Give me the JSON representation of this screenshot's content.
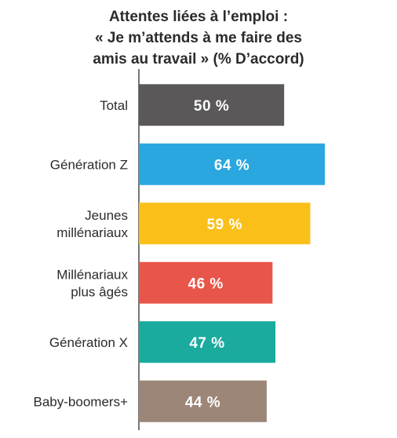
{
  "chart_data": {
    "type": "bar",
    "orientation": "horizontal",
    "title_lines": [
      "Attentes liées à l’emploi :",
      "« Je m’attends à me faire des",
      "amis au travail » (% D’accord)"
    ],
    "categories": [
      [
        "Total"
      ],
      [
        "Génération Z"
      ],
      [
        "Jeunes",
        "millénariaux"
      ],
      [
        "Millénariaux",
        "plus âgés"
      ],
      [
        "Génération X"
      ],
      [
        "Baby-boomers+"
      ]
    ],
    "values": [
      50,
      64,
      59,
      46,
      47,
      44
    ],
    "value_labels": [
      "50 %",
      "64 %",
      "59 %",
      "46 %",
      "47 %",
      "44 %"
    ],
    "colors": [
      "#5b5859",
      "#2aa7df",
      "#fbbf1a",
      "#e8554a",
      "#1aab9e",
      "#9c8677"
    ],
    "xlim": [
      0,
      64
    ],
    "grid": false,
    "legend": "none"
  }
}
